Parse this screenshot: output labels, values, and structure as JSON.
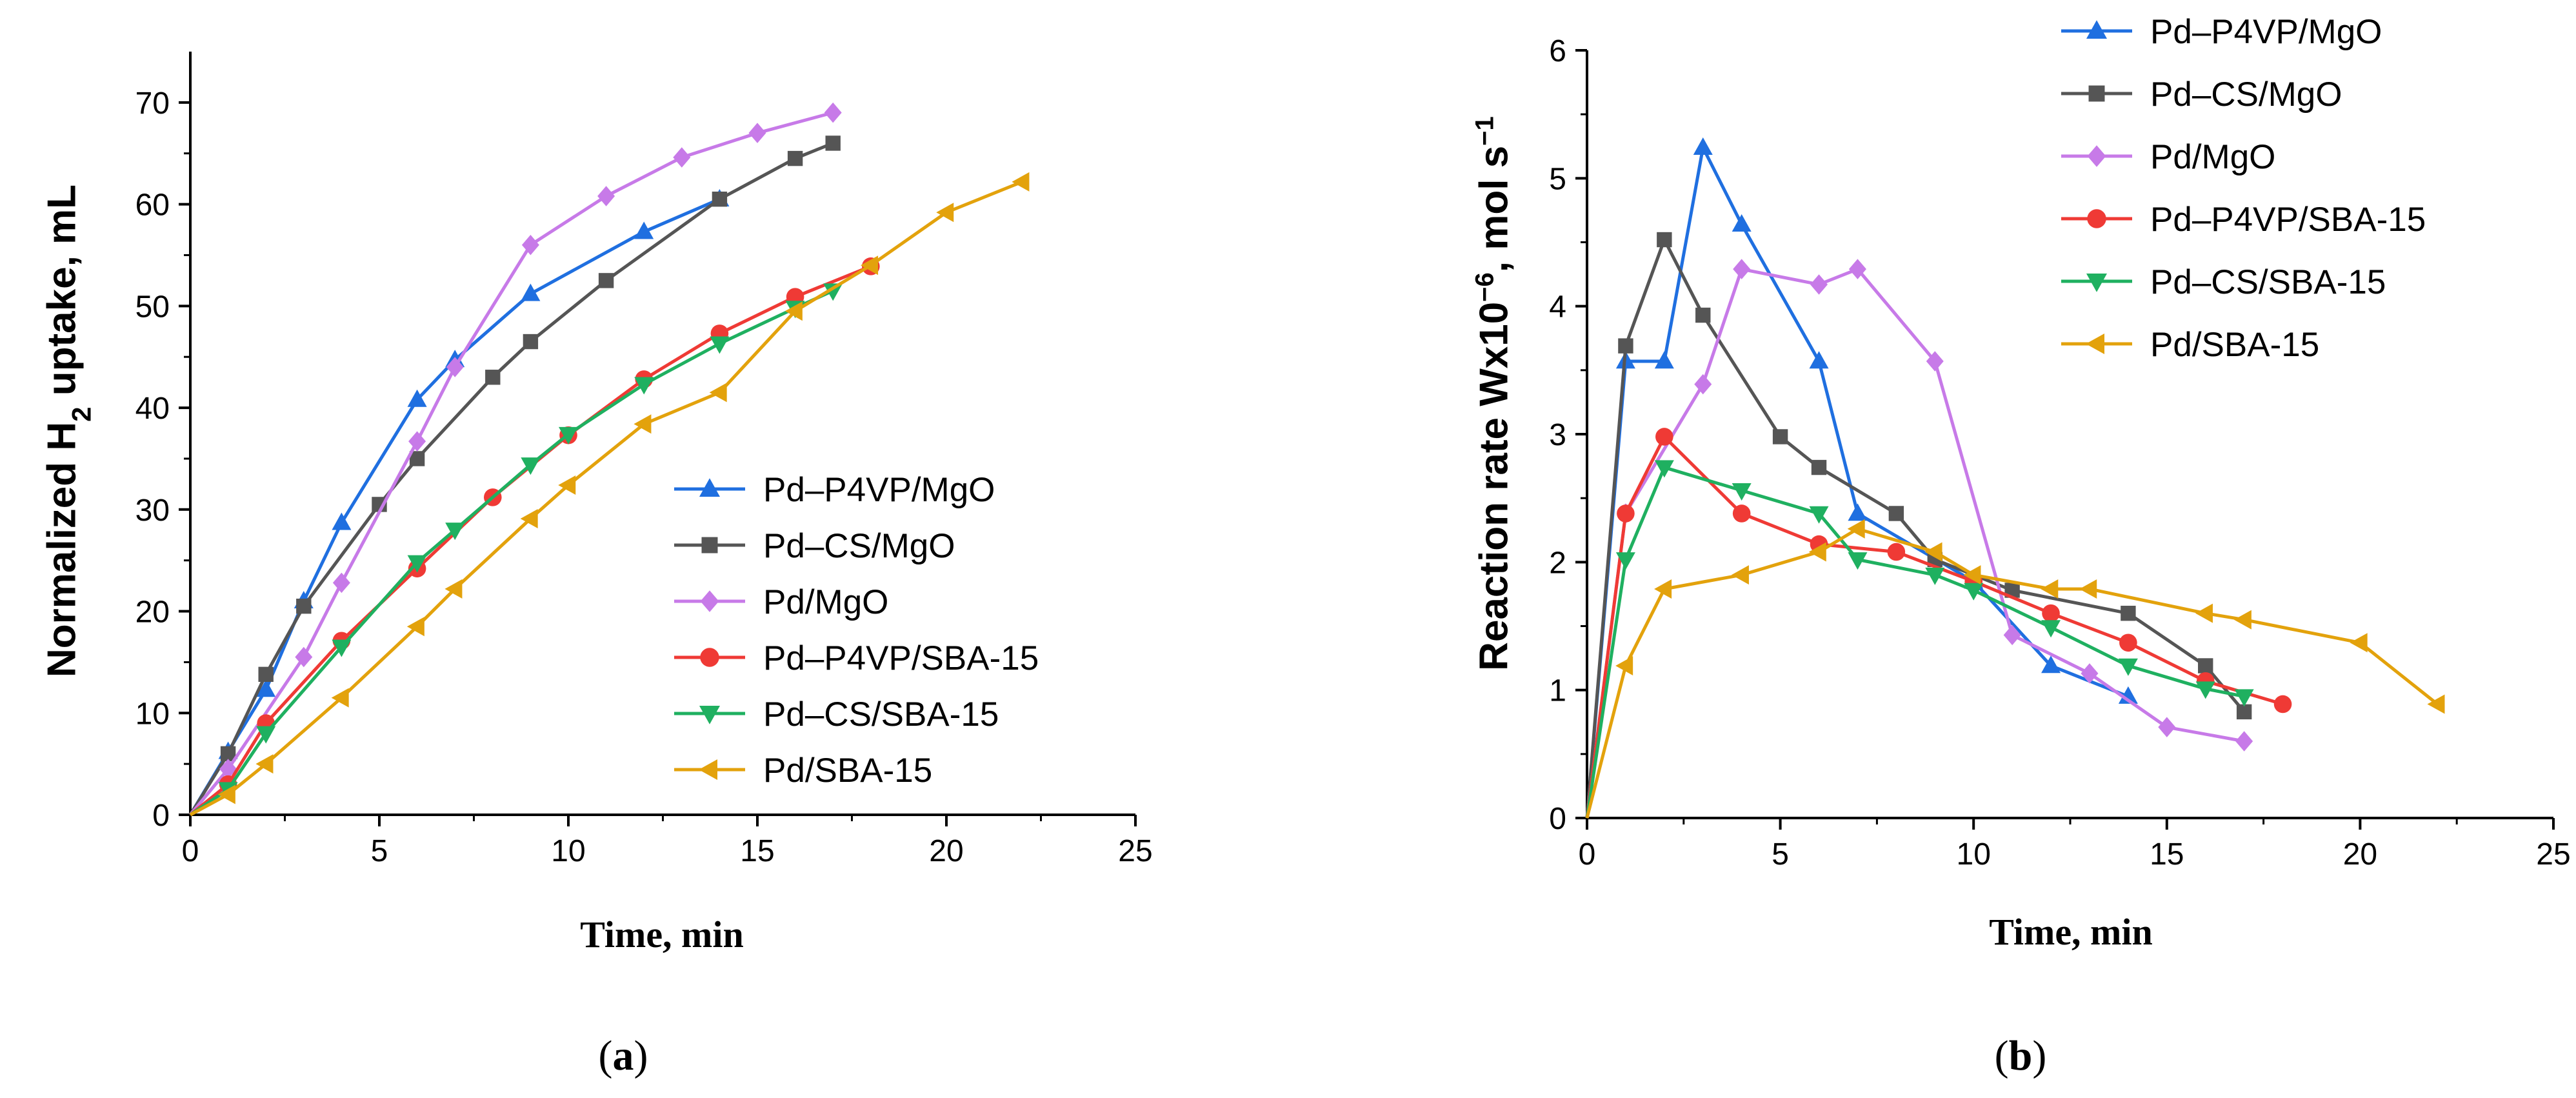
{
  "colors": {
    "Pd–P4VP/MgO": "#1f6fe0",
    "Pd–CS/MgO": "#555555",
    "Pd/MgO": "#c77ae8",
    "Pd–P4VP/SBA-15": "#ef3a35",
    "Pd–CS/SBA-15": "#1fb060",
    "Pd/SBA-15": "#e3a20c"
  },
  "markers": {
    "Pd–P4VP/MgO": "triangle-up",
    "Pd–CS/MgO": "square",
    "Pd/MgO": "diamond",
    "Pd–P4VP/SBA-15": "circle",
    "Pd–CS/SBA-15": "triangle-down",
    "Pd/SBA-15": "triangle-left"
  },
  "chart_data": [
    {
      "type": "line",
      "panel_label": "(a)",
      "xlabel": "Time, min",
      "ylabel": "Normalized H₂ uptake, mL",
      "xlim": [
        0,
        25
      ],
      "ylim": [
        0,
        75
      ],
      "xticks": [
        0,
        5,
        10,
        15,
        20,
        25
      ],
      "yticks": [
        0,
        10,
        20,
        30,
        40,
        50,
        60,
        70
      ],
      "legend_position": "lower-right",
      "series": [
        {
          "name": "Pd–P4VP/MgO",
          "x": [
            0,
            1,
            2,
            3,
            4,
            6,
            7,
            9,
            12,
            14
          ],
          "y": [
            0,
            6.2,
            12.3,
            21,
            28.7,
            40.8,
            44.7,
            51.2,
            57.3,
            60.5
          ]
        },
        {
          "name": "Pd–CS/MgO",
          "x": [
            0,
            1,
            2,
            3,
            5,
            6,
            8,
            9,
            11,
            14,
            16,
            17
          ],
          "y": [
            0,
            6,
            13.8,
            20.5,
            30.5,
            35,
            43,
            46.5,
            52.5,
            60.5,
            64.5,
            66
          ]
        },
        {
          "name": "Pd/MgO",
          "x": [
            0,
            1,
            3,
            4,
            6,
            7,
            9,
            11,
            13,
            15,
            17
          ],
          "y": [
            0,
            4.5,
            15.5,
            22.8,
            36.7,
            44,
            56,
            60.8,
            64.6,
            67,
            69
          ]
        },
        {
          "name": "Pd–P4VP/SBA-15",
          "x": [
            0,
            1,
            2,
            4,
            6,
            8,
            10,
            12,
            14,
            16,
            18
          ],
          "y": [
            0,
            3,
            9,
            17.1,
            24.2,
            31.2,
            37.3,
            42.8,
            47.3,
            50.9,
            53.9
          ]
        },
        {
          "name": "Pd–CS/SBA-15",
          "x": [
            0,
            1,
            2,
            4,
            6,
            7,
            9,
            10,
            12,
            14,
            16,
            17
          ],
          "y": [
            0,
            2.5,
            8,
            16.5,
            24.8,
            28,
            34.4,
            37.4,
            42.3,
            46.3,
            49.8,
            51.5
          ]
        },
        {
          "name": "Pd/SBA-15",
          "x": [
            0,
            1,
            2,
            4,
            6,
            7,
            9,
            10,
            12,
            14,
            16,
            18,
            20,
            22
          ],
          "y": [
            0,
            2,
            5,
            11.5,
            18.5,
            22.2,
            29.1,
            32.4,
            38.4,
            41.5,
            49.5,
            54,
            59.2,
            62.2
          ]
        }
      ]
    },
    {
      "type": "line",
      "panel_label": "(b)",
      "xlabel": "Time, min",
      "ylabel": "Reaction rate Wx10⁻⁶, mol s⁻¹",
      "xlim": [
        0,
        25
      ],
      "ylim": [
        0,
        6
      ],
      "xticks": [
        0,
        5,
        10,
        15,
        20,
        25
      ],
      "yticks": [
        0,
        1,
        2,
        3,
        4,
        5,
        6
      ],
      "legend_position": "top-center",
      "series": [
        {
          "name": "Pd–P4VP/MgO",
          "x": [
            0,
            1,
            2,
            3,
            4,
            6,
            7,
            10,
            12,
            14
          ],
          "y": [
            0,
            3.57,
            3.57,
            5.24,
            4.64,
            3.57,
            2.38,
            1.85,
            1.19,
            0.95
          ]
        },
        {
          "name": "Pd–CS/MgO",
          "x": [
            0,
            1,
            2,
            3,
            5,
            6,
            8,
            9,
            11,
            14,
            16,
            17
          ],
          "y": [
            0,
            3.69,
            4.52,
            3.93,
            2.98,
            2.74,
            2.38,
            2.02,
            1.78,
            1.6,
            1.19,
            0.83
          ]
        },
        {
          "name": "Pd/MgO",
          "x": [
            0,
            1,
            3,
            4,
            6,
            7,
            9,
            11,
            13,
            15,
            17
          ],
          "y": [
            0,
            2.38,
            3.39,
            4.29,
            4.17,
            4.29,
            3.57,
            1.43,
            1.13,
            0.71,
            0.6
          ]
        },
        {
          "name": "Pd–P4VP/SBA-15",
          "x": [
            0,
            1,
            2,
            4,
            6,
            8,
            10,
            12,
            14,
            16,
            18
          ],
          "y": [
            0,
            2.38,
            2.98,
            2.38,
            2.14,
            2.08,
            1.85,
            1.6,
            1.37,
            1.07,
            0.89
          ]
        },
        {
          "name": "Pd–CS/SBA-15",
          "x": [
            0,
            1,
            2,
            4,
            6,
            7,
            9,
            10,
            12,
            14,
            16,
            17
          ],
          "y": [
            0,
            2.02,
            2.74,
            2.56,
            2.38,
            2.02,
            1.9,
            1.78,
            1.49,
            1.19,
            1.01,
            0.95
          ]
        },
        {
          "name": "Pd/SBA-15",
          "x": [
            0,
            1,
            2,
            4,
            6,
            7,
            9,
            10,
            12,
            13,
            16,
            17,
            20,
            22
          ],
          "y": [
            0,
            1.19,
            1.79,
            1.9,
            2.08,
            2.26,
            2.08,
            1.9,
            1.79,
            1.79,
            1.6,
            1.55,
            1.37,
            0.89
          ]
        }
      ]
    }
  ]
}
